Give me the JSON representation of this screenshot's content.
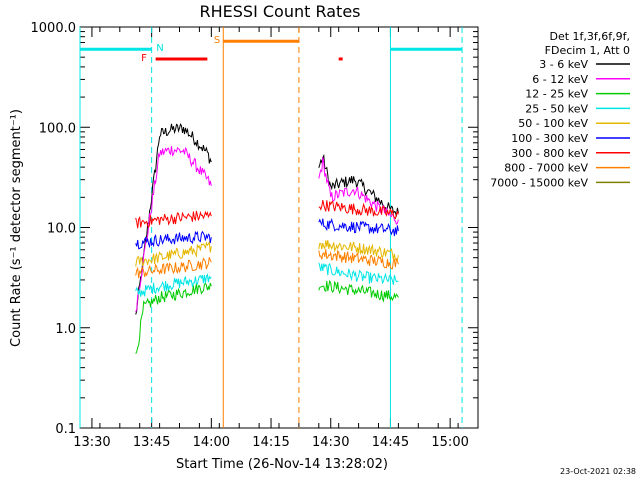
{
  "chart_data": {
    "type": "line",
    "title": "RHESSI Count Rates",
    "xlabel": "Start Time (26-Nov-14 13:28:02)",
    "ylabel": "Count Rate (s⁻¹ detector segment⁻¹)",
    "yscale": "log",
    "ylim": [
      0.1,
      1000
    ],
    "xlim": [
      "13:27",
      "15:07"
    ],
    "y_ticks": [
      "0.1",
      "1.0",
      "10.0",
      "100.0",
      "1000.0"
    ],
    "x_ticks": [
      "13:30",
      "13:45",
      "14:00",
      "14:15",
      "14:30",
      "14:45",
      "15:00"
    ],
    "legend_header": [
      "Det 1f,3f,6f,9f,",
      "FDecim 1, Att 0"
    ],
    "legend_position": "top-right",
    "footer": "23-Oct-2021 02:38",
    "series": [
      {
        "name": "3 - 6 keV",
        "color": "#000000",
        "points": [
          [
            "13:41",
            1.3
          ],
          [
            "13:46",
            40
          ],
          [
            "13:47",
            85
          ],
          [
            "13:50",
            95
          ],
          [
            "13:53",
            98
          ],
          [
            "13:56",
            75
          ],
          [
            "13:59",
            55
          ],
          [
            "14:00",
            45
          ],
          [
            "14:27",
            40
          ],
          [
            "14:28",
            50
          ],
          [
            "14:30",
            25
          ],
          [
            "14:33",
            28
          ],
          [
            "14:36",
            30
          ],
          [
            "14:40",
            22
          ],
          [
            "14:45",
            15
          ],
          [
            "14:47",
            14
          ]
        ]
      },
      {
        "name": "6 - 12 keV",
        "color": "#ff00ff",
        "points": [
          [
            "13:41",
            1.5
          ],
          [
            "13:46",
            30
          ],
          [
            "13:47",
            55
          ],
          [
            "13:50",
            60
          ],
          [
            "13:53",
            58
          ],
          [
            "13:56",
            42
          ],
          [
            "13:59",
            30
          ],
          [
            "14:00",
            26
          ],
          [
            "14:27",
            30
          ],
          [
            "14:28",
            45
          ],
          [
            "14:30",
            20
          ],
          [
            "14:33",
            22
          ],
          [
            "14:36",
            24
          ],
          [
            "14:40",
            18
          ],
          [
            "14:45",
            13
          ],
          [
            "14:47",
            12
          ]
        ]
      },
      {
        "name": "12 - 25 keV",
        "color": "#00cc00",
        "points": [
          [
            "13:41",
            0.5
          ],
          [
            "13:43",
            1.6
          ],
          [
            "13:47",
            2.0
          ],
          [
            "13:52",
            2.2
          ],
          [
            "13:57",
            2.5
          ],
          [
            "14:00",
            2.6
          ],
          [
            "14:27",
            2.7
          ],
          [
            "14:32",
            2.5
          ],
          [
            "14:38",
            2.3
          ],
          [
            "14:44",
            2.1
          ],
          [
            "14:47",
            2.0
          ]
        ]
      },
      {
        "name": "25 - 50 keV",
        "color": "#00e5e5",
        "points": [
          [
            "13:41",
            2.2
          ],
          [
            "13:47",
            2.6
          ],
          [
            "13:52",
            2.8
          ],
          [
            "13:57",
            3.0
          ],
          [
            "14:00",
            3.2
          ],
          [
            "14:27",
            4.0
          ],
          [
            "14:32",
            3.6
          ],
          [
            "14:38",
            3.2
          ],
          [
            "14:44",
            3.0
          ],
          [
            "14:47",
            2.9
          ]
        ]
      },
      {
        "name": "50 - 100 keV",
        "color": "#e5b800",
        "points": [
          [
            "13:41",
            4.5
          ],
          [
            "13:47",
            5.0
          ],
          [
            "13:52",
            5.5
          ],
          [
            "13:57",
            6.0
          ],
          [
            "14:00",
            6.5
          ],
          [
            "14:27",
            7.0
          ],
          [
            "14:32",
            6.6
          ],
          [
            "14:38",
            6.2
          ],
          [
            "14:44",
            5.6
          ],
          [
            "14:47",
            5.3
          ]
        ]
      },
      {
        "name": "100 - 300 keV",
        "color": "#0000ff",
        "points": [
          [
            "13:41",
            7.0
          ],
          [
            "13:47",
            7.5
          ],
          [
            "13:52",
            7.8
          ],
          [
            "13:57",
            8.0
          ],
          [
            "14:00",
            8.0
          ],
          [
            "14:27",
            11
          ],
          [
            "14:32",
            10.5
          ],
          [
            "14:38",
            10
          ],
          [
            "14:44",
            9.5
          ],
          [
            "14:47",
            9.2
          ]
        ]
      },
      {
        "name": "300 - 800 keV",
        "color": "#ff0000",
        "points": [
          [
            "13:41",
            11
          ],
          [
            "13:47",
            12
          ],
          [
            "13:52",
            12.5
          ],
          [
            "13:57",
            13
          ],
          [
            "14:00",
            13
          ],
          [
            "14:27",
            17
          ],
          [
            "14:32",
            16
          ],
          [
            "14:38",
            15
          ],
          [
            "14:44",
            14
          ],
          [
            "14:47",
            13.5
          ]
        ]
      },
      {
        "name": "800 - 7000 keV",
        "color": "#ff8000",
        "points": [
          [
            "13:41",
            3.5
          ],
          [
            "13:47",
            3.8
          ],
          [
            "13:52",
            4.0
          ],
          [
            "13:57",
            4.3
          ],
          [
            "14:00",
            4.5
          ],
          [
            "14:27",
            5.5
          ],
          [
            "14:32",
            5.2
          ],
          [
            "14:38",
            4.8
          ],
          [
            "14:44",
            4.5
          ],
          [
            "14:47",
            4.3
          ]
        ]
      },
      {
        "name": "7000 - 15000 keV",
        "color": "#808000",
        "points": []
      }
    ],
    "vertical_lines": [
      {
        "x": "13:27",
        "color": "#00e5e5",
        "style": "solid"
      },
      {
        "x": "13:45",
        "color": "#00e5e5",
        "style": "dashed"
      },
      {
        "x": "14:03",
        "color": "#ff8000",
        "style": "solid"
      },
      {
        "x": "14:22",
        "color": "#ff8000",
        "style": "dashed"
      },
      {
        "x": "14:45",
        "color": "#00e5e5",
        "style": "solid"
      },
      {
        "x": "15:03",
        "color": "#00e5e5",
        "style": "dashed"
      }
    ],
    "flag_bars": [
      {
        "label": "",
        "color": "#00e5e5",
        "x0": "13:27",
        "x1": "13:45",
        "y": 600
      },
      {
        "label": "N",
        "color": "#00e5e5",
        "x0": "",
        "x1": "",
        "y": 0
      },
      {
        "label": "",
        "color": "#00e5e5",
        "x0": "14:45",
        "x1": "15:03",
        "y": 600
      },
      {
        "label": "S",
        "color": "#ff8000",
        "x0": "14:03",
        "x1": "14:22",
        "y": 720
      },
      {
        "label": "F",
        "color": "#ff0000",
        "x0": "13:46",
        "x1": "13:59",
        "y": 480
      },
      {
        "label": "",
        "color": "#ff0000",
        "x0": "14:32",
        "x1": "14:33",
        "y": 480
      }
    ]
  }
}
